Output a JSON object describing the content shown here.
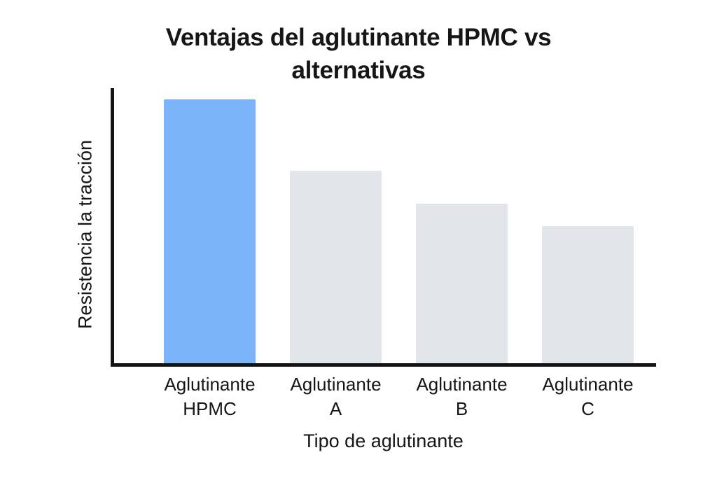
{
  "chart_data": {
    "type": "bar",
    "title": "Ventajas del aglutinante HPMC vs alternativas",
    "xlabel": "Tipo de aglutinante",
    "ylabel": "Resistencia la tracción",
    "categories": [
      {
        "label": "Aglutinante HPMC",
        "lines": [
          "Aglutinante",
          "HPMC"
        ]
      },
      {
        "label": "Aglutinante A",
        "lines": [
          "Aglutinante",
          "A"
        ]
      },
      {
        "label": "Aglutinante B",
        "lines": [
          "Aglutinante",
          "B"
        ]
      },
      {
        "label": "Aglutinante C",
        "lines": [
          "Aglutinante",
          "C"
        ]
      }
    ],
    "values": [
      96,
      70,
      58,
      50
    ],
    "ylim": [
      0,
      100
    ],
    "yticks": [],
    "grid": false,
    "legend_position": "none",
    "bar_colors": [
      "#7CB4FA",
      "#E2E5EA",
      "#E2E5EA",
      "#E2E5EA"
    ],
    "highlight_index": 0
  },
  "colors": {
    "background": "#ffffff",
    "axis": "#141414",
    "text": "#161616",
    "highlight_bar": "#7CB4FA",
    "default_bar": "#E2E5EA"
  }
}
